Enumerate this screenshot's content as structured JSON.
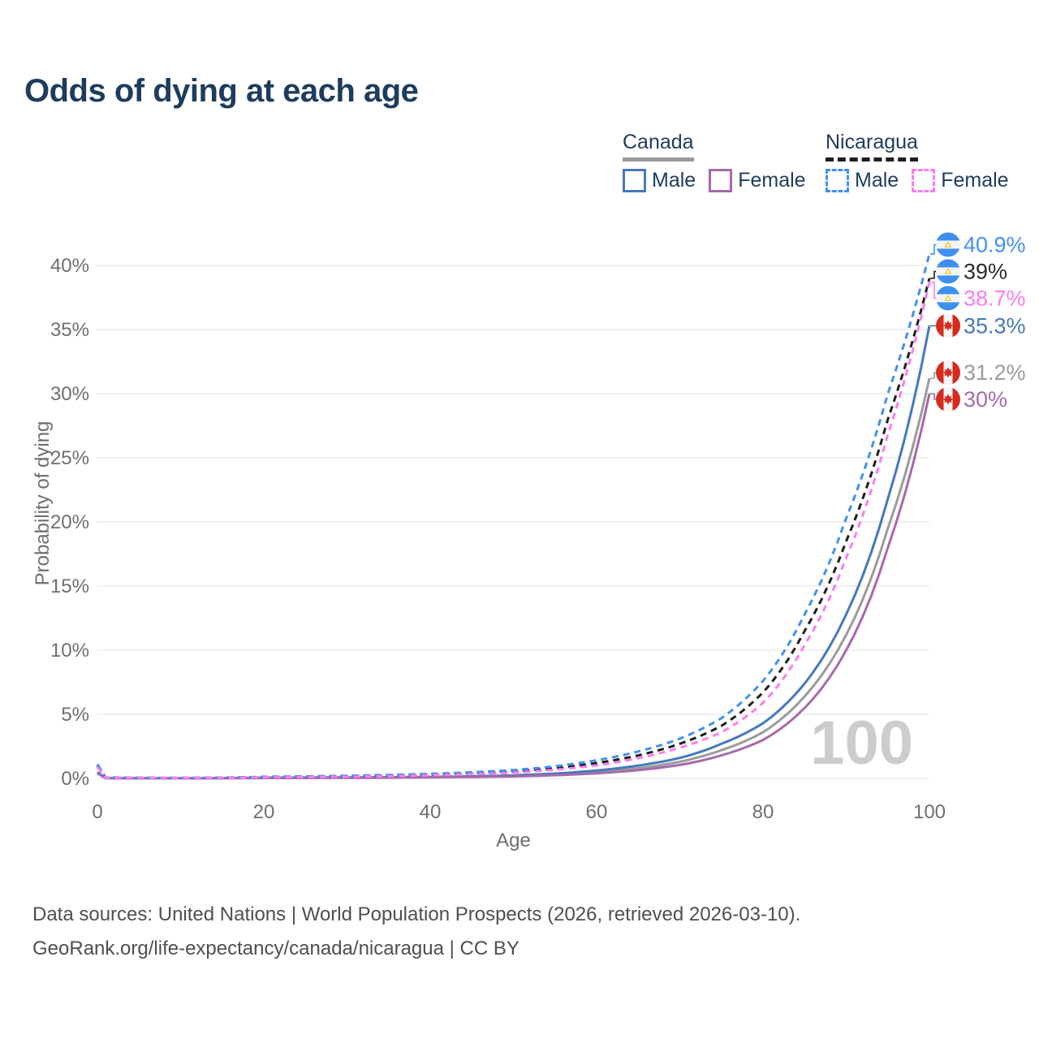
{
  "title": "Odds of dying at each age",
  "watermark": "100",
  "legend": {
    "groups": [
      {
        "country": "Canada",
        "line_style": "solid",
        "both_sexes_color": "#9a9a9a",
        "items": [
          {
            "label": "Male",
            "color": "#4579bd"
          },
          {
            "label": "Female",
            "color": "#a66aab"
          }
        ]
      },
      {
        "country": "Nicaragua",
        "line_style": "dashed",
        "both_sexes_color": "#1f1f1f",
        "items": [
          {
            "label": "Male",
            "color": "#4191f1"
          },
          {
            "label": "Female",
            "color": "#fc7cf0"
          }
        ]
      }
    ]
  },
  "footer": {
    "line1": "Data sources: United Nations | World Population Prospects (2026, retrieved 2026-03-10).",
    "line2": "GeoRank.org/life-expectancy/canada/nicaragua | CC BY"
  },
  "chart_data": {
    "type": "line",
    "title": "Odds of dying at each age",
    "xlabel": "Age",
    "ylabel": "Probability of dying",
    "xlim": [
      0,
      100
    ],
    "ylim": [
      0,
      42
    ],
    "xticks": [
      0,
      20,
      40,
      60,
      80,
      100
    ],
    "yticks": [
      0,
      5,
      10,
      15,
      20,
      25,
      30,
      35,
      40
    ],
    "ytick_suffix": "%",
    "grid": true,
    "legend_position": "top-right",
    "hover_age_indicator": "100",
    "ages": [
      0,
      1,
      10,
      20,
      30,
      40,
      50,
      55,
      60,
      65,
      70,
      75,
      80,
      85,
      90,
      95,
      100
    ],
    "series": [
      {
        "name": "Canada Both sexes",
        "country": "Canada",
        "sex": "Both",
        "flag": "canada",
        "color": "#9b9b9b",
        "dashed": false,
        "end_label": "31.2%",
        "end_value": 31.2,
        "label_color": "#9b9b9b",
        "values": [
          0.45,
          0.025,
          0.01,
          0.045,
          0.06,
          0.1,
          0.2,
          0.31,
          0.5,
          0.8,
          1.3,
          2.2,
          3.6,
          6.4,
          11.2,
          19.5,
          31.2
        ]
      },
      {
        "name": "Canada Male",
        "country": "Canada",
        "sex": "Male",
        "flag": "canada",
        "color": "#4579bd",
        "dashed": false,
        "end_label": "35.3%",
        "end_value": 35.3,
        "label_color": "#4579bd",
        "values": [
          0.5,
          0.03,
          0.012,
          0.06,
          0.08,
          0.12,
          0.24,
          0.38,
          0.62,
          1.0,
          1.6,
          2.7,
          4.3,
          7.4,
          12.8,
          21.8,
          35.3
        ]
      },
      {
        "name": "Canada Female",
        "country": "Canada",
        "sex": "Female",
        "flag": "canada",
        "color": "#a66aab",
        "dashed": false,
        "end_label": "30%",
        "end_value": 30,
        "label_color": "#a66aab",
        "values": [
          0.4,
          0.02,
          0.01,
          0.03,
          0.045,
          0.08,
          0.16,
          0.25,
          0.4,
          0.65,
          1.05,
          1.8,
          3.0,
          5.5,
          10.0,
          18.0,
          30.0
        ]
      },
      {
        "name": "Nicaragua Both sexes",
        "country": "Nicaragua",
        "sex": "Both",
        "flag": "nicaragua",
        "color": "#1f1f1f",
        "dashed": true,
        "end_label": "39%",
        "end_value": 39,
        "label_color": "#2b2b2b",
        "values": [
          1.0,
          0.07,
          0.035,
          0.1,
          0.17,
          0.3,
          0.55,
          0.8,
          1.2,
          1.8,
          2.7,
          4.1,
          6.7,
          11.5,
          18.5,
          28.0,
          39.0
        ]
      },
      {
        "name": "Nicaragua Male",
        "country": "Nicaragua",
        "sex": "Male",
        "flag": "nicaragua",
        "color": "#4191f1",
        "dashed": true,
        "end_label": "40.9%",
        "end_value": 40.9,
        "label_color": "#4191f1",
        "values": [
          1.1,
          0.08,
          0.04,
          0.13,
          0.21,
          0.36,
          0.65,
          0.95,
          1.42,
          2.1,
          3.1,
          4.7,
          7.6,
          12.8,
          20.3,
          30.0,
          40.9
        ]
      },
      {
        "name": "Nicaragua Female",
        "country": "Nicaragua",
        "sex": "Female",
        "flag": "nicaragua",
        "color": "#fc7cf0",
        "dashed": true,
        "end_label": "38.7%",
        "end_value": 38.7,
        "label_color": "#fc7cf0",
        "values": [
          0.9,
          0.06,
          0.03,
          0.08,
          0.13,
          0.25,
          0.46,
          0.68,
          1.02,
          1.58,
          2.4,
          3.6,
          5.9,
          10.4,
          17.2,
          26.8,
          38.7
        ]
      }
    ]
  }
}
